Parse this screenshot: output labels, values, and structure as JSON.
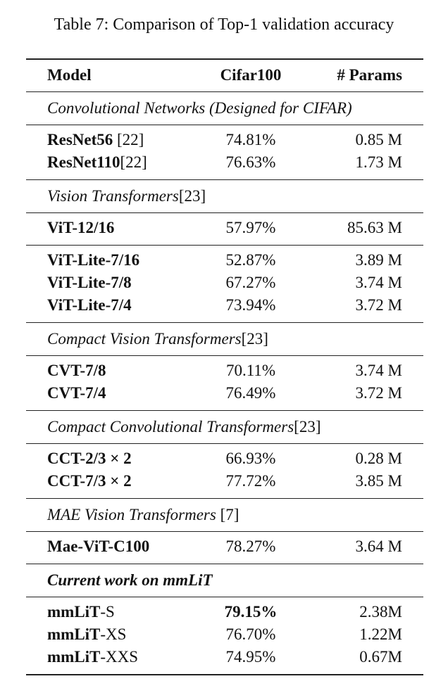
{
  "caption": "Table 7: Comparison of Top-1 validation accuracy",
  "table": {
    "header": [
      "Model",
      "Cifar100",
      "# Params"
    ],
    "groups": [
      {
        "title": "Convolutional Networks (Designed for CIFAR)",
        "blocks": [
          [
            {
              "model": "ResNet56",
              "suffix": " [22]",
              "acc": "74.81%",
              "params": "0.85 M"
            },
            {
              "model": "ResNet110",
              "suffix": "[22]",
              "acc": "76.63%",
              "params": "1.73 M"
            }
          ]
        ]
      },
      {
        "title": "Vision Transformers",
        "ref": "[23]",
        "blocks": [
          [
            {
              "model": "ViT-12/16",
              "acc": "57.97%",
              "params": "85.63 M"
            }
          ],
          [
            {
              "model": "ViT-Lite-7/16",
              "acc": "52.87%",
              "params": "3.89 M"
            },
            {
              "model": "ViT-Lite-7/8",
              "acc": "67.27%",
              "params": "3.74 M"
            },
            {
              "model": "ViT-Lite-7/4",
              "acc": "73.94%",
              "params": "3.72 M"
            }
          ]
        ]
      },
      {
        "title": "Compact Vision Transformers",
        "ref": "[23]",
        "blocks": [
          [
            {
              "model": "CVT-7/8",
              "acc": "70.11%",
              "params": "3.74 M"
            },
            {
              "model": "CVT-7/4",
              "acc": "76.49%",
              "params": "3.72 M"
            }
          ]
        ]
      },
      {
        "title": "Compact Convolutional Transformers",
        "ref": "[23]",
        "blocks": [
          [
            {
              "model": "CCT-2/3 × 2",
              "acc": "66.93%",
              "params": "0.28 M"
            },
            {
              "model": "CCT-7/3 × 2",
              "acc": "77.72%",
              "params": "3.85 M"
            }
          ]
        ]
      },
      {
        "title": "MAE Vision Transformers",
        "ref": " [7]",
        "blocks": [
          [
            {
              "model": "Mae-ViT-C100",
              "acc": "78.27%",
              "params": "3.64 M"
            }
          ]
        ]
      },
      {
        "title": "Current work on mmLiT",
        "bold_title": true,
        "blocks": [
          [
            {
              "model": "mmLiT",
              "suffix": "-S",
              "acc": "79.15%",
              "bold_acc": true,
              "params": "2.38M"
            },
            {
              "model": "mmLiT",
              "suffix": "-XS",
              "acc": "76.70%",
              "params": "1.22M"
            },
            {
              "model": "mmLiT",
              "suffix": "-XXS",
              "acc": "74.95%",
              "params": "0.67M"
            }
          ]
        ]
      }
    ]
  }
}
